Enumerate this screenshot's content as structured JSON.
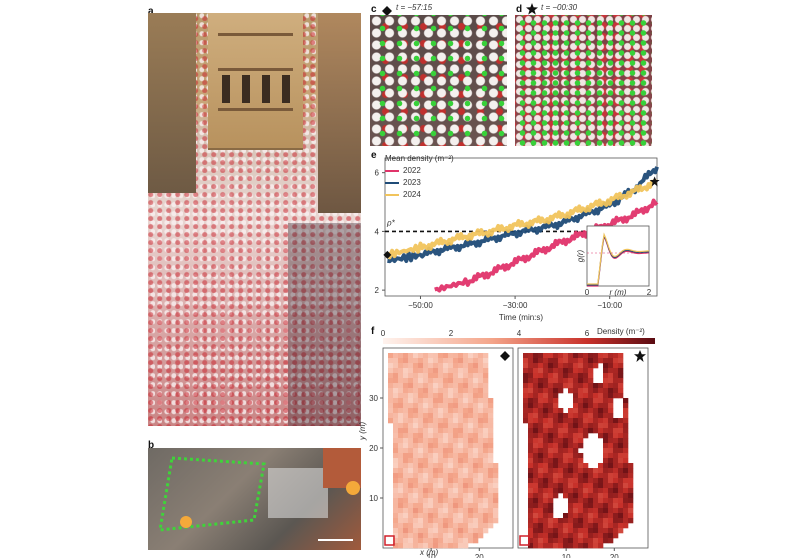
{
  "panels": {
    "a": "a",
    "b": "b",
    "c": "c",
    "d": "d",
    "e": "e",
    "f": "f"
  },
  "panel_c": {
    "time_label": "t = −57:15"
  },
  "panel_d": {
    "time_label": "t = −00:30"
  },
  "colors": {
    "c2022": "#e0336a",
    "c2023": "#1f4b77",
    "c2024": "#f1c45c"
  },
  "chart_data": [
    {
      "type": "line",
      "panel": "e",
      "title": "",
      "legend_title": "Mean density (m⁻²)",
      "legend_position": "top-left",
      "xlabel": "Time (min:s)",
      "ylabel": "",
      "xlim": [
        -57.5,
        0
      ],
      "ylim": [
        1.8,
        6.5
      ],
      "x_ticks": [
        -50,
        -30,
        -10
      ],
      "x_tick_labels": [
        "−50:00",
        "−30:00",
        "−10:00"
      ],
      "y_ticks": [
        2,
        4,
        6
      ],
      "threshold": {
        "label": "ρ*",
        "value": 4
      },
      "series": [
        {
          "name": "2022",
          "color": "#e0336a",
          "x": [
            -47,
            -40,
            -35,
            -30,
            -25,
            -20,
            -15,
            -10,
            -5,
            0
          ],
          "y": [
            2.0,
            2.3,
            2.6,
            2.95,
            3.3,
            3.65,
            3.95,
            4.25,
            4.55,
            5.0
          ]
        },
        {
          "name": "2023",
          "color": "#1f4b77",
          "x": [
            -57,
            -50,
            -45,
            -40,
            -35,
            -30,
            -25,
            -20,
            -15,
            -10,
            -5,
            0
          ],
          "y": [
            3.0,
            3.2,
            3.4,
            3.55,
            3.75,
            3.95,
            4.1,
            4.3,
            4.6,
            4.9,
            5.4,
            6.2
          ]
        },
        {
          "name": "2024",
          "color": "#f1c45c",
          "x": [
            -57,
            -50,
            -45,
            -40,
            -35,
            -30,
            -25,
            -20,
            -15,
            -10,
            -5,
            0
          ],
          "y": [
            3.2,
            3.45,
            3.65,
            3.85,
            4.0,
            4.2,
            4.35,
            4.55,
            4.8,
            5.05,
            5.35,
            5.7
          ]
        }
      ],
      "markers": [
        {
          "symbol": "diamond",
          "x": -57,
          "y": 3.2
        },
        {
          "symbol": "star",
          "x": -0.5,
          "y": 5.7
        }
      ],
      "inset": {
        "ylabel": "g(r)",
        "xlabel": "r (m)",
        "x_ticks": [
          0,
          2
        ],
        "xlim": [
          0,
          2
        ]
      }
    },
    {
      "type": "heatmap",
      "panel": "f",
      "colorbar_label": "Density (m⁻²)",
      "colorbar_ticks": [
        0,
        2,
        4,
        6
      ],
      "colorbar_range": [
        0,
        8
      ],
      "xlabel": "x (m)",
      "ylabel": "y (m)",
      "x_ticks": [
        10,
        20
      ],
      "y_ticks": [
        10,
        20,
        30
      ],
      "maps": [
        {
          "marker": "diamond",
          "mean_density": 2.5
        },
        {
          "marker": "star",
          "mean_density": 6.5
        }
      ]
    }
  ]
}
